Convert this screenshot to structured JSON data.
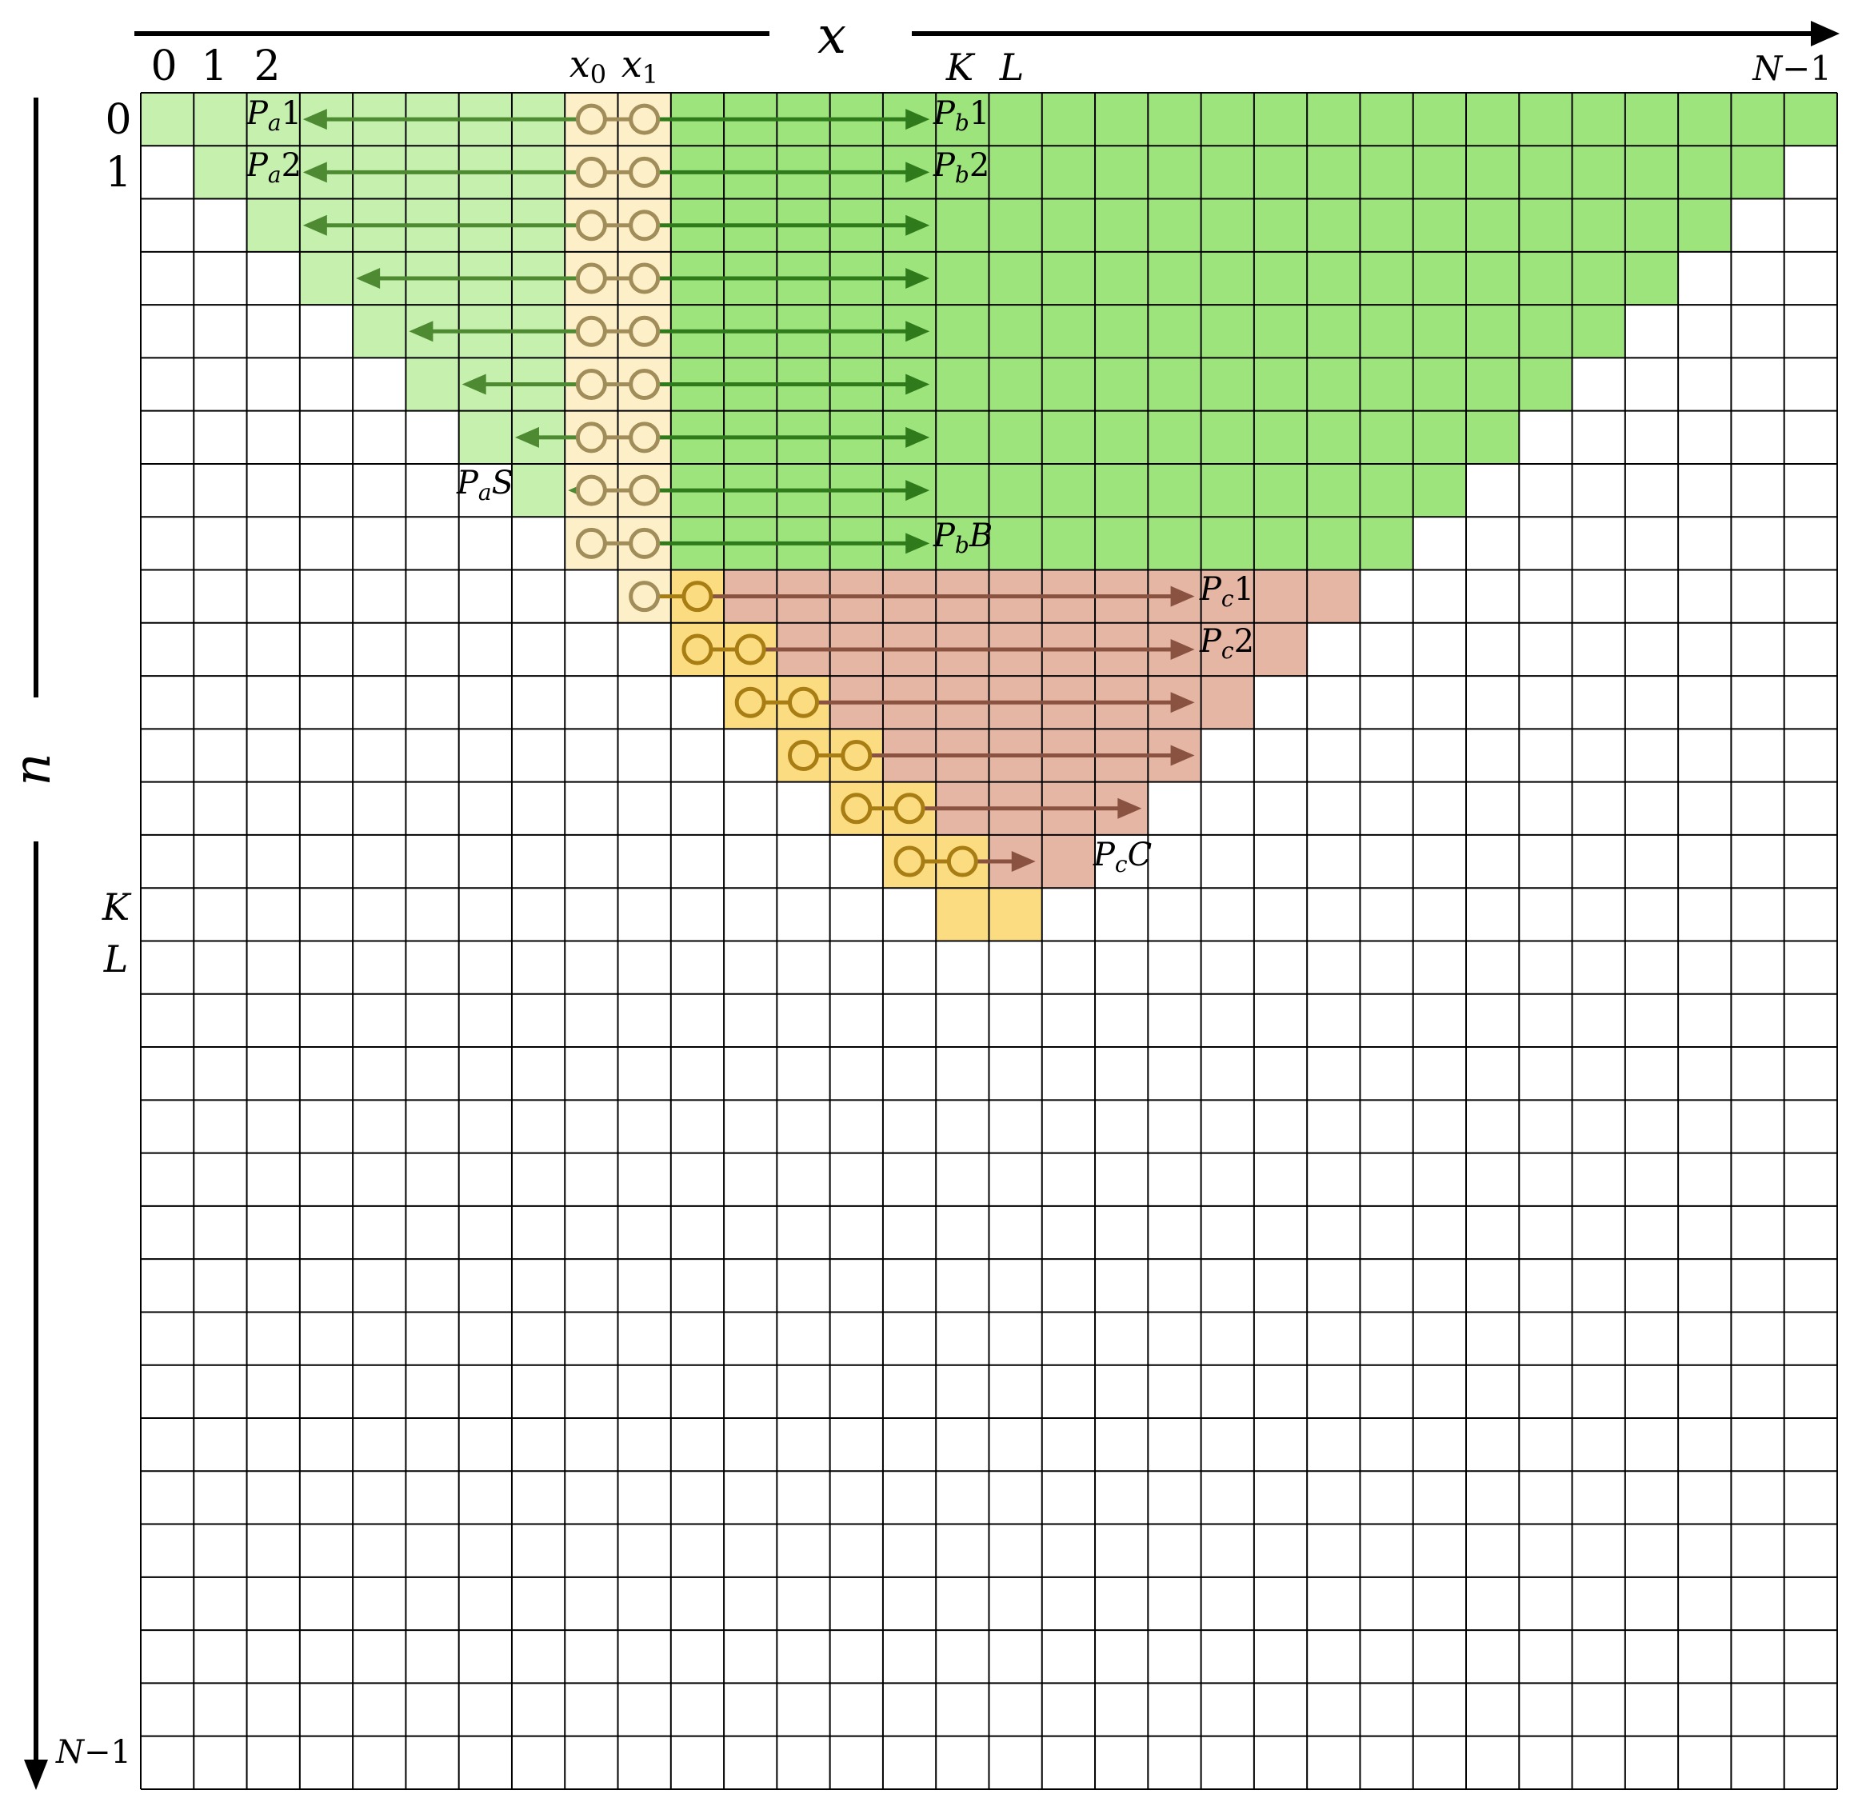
{
  "axes": {
    "x_label": "x",
    "n_label": "n",
    "x_ticks": [
      "0",
      "1",
      "2"
    ],
    "n_ticks": [
      "0",
      "1"
    ],
    "x_special": {
      "x0": "x",
      "x0_sub": "0",
      "x1": "x",
      "x1_sub": "1",
      "K": "K",
      "L": "L"
    },
    "n_special": {
      "K": "K",
      "L": "L"
    },
    "x_end": {
      "main": "N",
      "rest": "−1"
    },
    "n_end": {
      "main": "N",
      "rest": "−1"
    }
  },
  "grid": {
    "cols": 32,
    "rows": 32
  },
  "colors": {
    "light_green": "#c6f0ae",
    "green": "#9de47c",
    "light_yellow": "#fdf0c8",
    "yellow": "#fbdc80",
    "salmon": "#e6b6a5",
    "arrow_light_green": "#4d8a32",
    "arrow_dark_green": "#2f7a1b",
    "arrow_brown": "#8a5240",
    "circle_tan": "#a18d5a",
    "circle_gold": "#a87e14",
    "grid_line": "#000000"
  },
  "point_labels": {
    "Pa1": {
      "P": "P",
      "sub": "a",
      "rest": "1"
    },
    "Pa2": {
      "P": "P",
      "sub": "a",
      "rest": "2"
    },
    "PaS": {
      "P": "P",
      "sub": "a",
      "rest": "S"
    },
    "Pb1": {
      "P": "P",
      "sub": "b",
      "rest": "1"
    },
    "Pb2": {
      "P": "P",
      "sub": "b",
      "rest": "2"
    },
    "PbB": {
      "P": "P",
      "sub": "b",
      "rest": "B"
    },
    "Pc1": {
      "P": "P",
      "sub": "c",
      "rest": "1"
    },
    "Pc2": {
      "P": "P",
      "sub": "c",
      "rest": "2"
    },
    "PcC": {
      "P": "P",
      "sub": "c",
      "rest": "C"
    }
  },
  "regions": {
    "green_rows": [
      {
        "row": 0,
        "left_start": 0,
        "right_end": 31
      },
      {
        "row": 1,
        "left_start": 1,
        "right_end": 30
      },
      {
        "row": 2,
        "left_start": 2,
        "right_end": 29
      },
      {
        "row": 3,
        "left_start": 3,
        "right_end": 28
      },
      {
        "row": 4,
        "left_start": 4,
        "right_end": 27
      },
      {
        "row": 5,
        "left_start": 5,
        "right_end": 26
      },
      {
        "row": 6,
        "left_start": 6,
        "right_end": 25
      },
      {
        "row": 7,
        "left_start": 7,
        "right_end": 24
      },
      {
        "row": 8,
        "left_start": 8,
        "right_end": 23
      }
    ],
    "salmon_rows": [
      {
        "row": 9,
        "pair_start": 9,
        "right_end": 22
      },
      {
        "row": 10,
        "pair_start": 10,
        "right_end": 21
      },
      {
        "row": 11,
        "pair_start": 11,
        "right_end": 20
      },
      {
        "row": 12,
        "pair_start": 12,
        "right_end": 19
      },
      {
        "row": 13,
        "pair_start": 13,
        "right_end": 18
      },
      {
        "row": 14,
        "pair_start": 14,
        "right_end": 17
      },
      {
        "row": 15,
        "pair_start": 15,
        "right_end": 16
      }
    ]
  }
}
